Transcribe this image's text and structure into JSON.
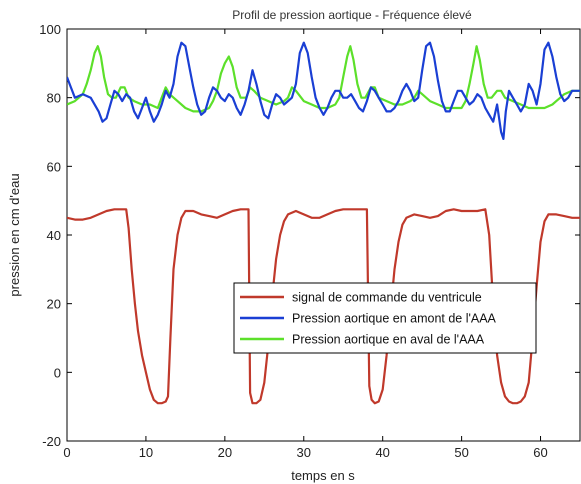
{
  "chart_data": {
    "type": "line",
    "title": "Profil de pression aortique - Fréquence élevé",
    "xlabel": "temps en s",
    "ylabel": "pression en cm d'eau",
    "xlim": [
      0,
      65
    ],
    "ylim": [
      -20,
      100
    ],
    "xticks": [
      0,
      10,
      20,
      30,
      40,
      50,
      60
    ],
    "yticks": [
      -20,
      0,
      20,
      40,
      60,
      80,
      100
    ],
    "xtick_labels": [
      "0",
      "10",
      "20",
      "30",
      "40",
      "50",
      "60"
    ],
    "ytick_labels": [
      "-20",
      "0",
      "20",
      "40",
      "60",
      "80",
      "100"
    ],
    "grid": false,
    "legend_position": "lower-right",
    "series": [
      {
        "name": "signal de commande du ventricule",
        "color": "#c0392b",
        "points": [
          [
            0,
            45
          ],
          [
            1,
            44.5
          ],
          [
            2,
            44.5
          ],
          [
            3,
            45
          ],
          [
            4,
            46
          ],
          [
            5,
            47
          ],
          [
            6,
            47.5
          ],
          [
            7,
            47.5
          ],
          [
            7.5,
            47.5
          ],
          [
            7.8,
            42
          ],
          [
            8.2,
            30
          ],
          [
            8.6,
            20
          ],
          [
            9,
            12
          ],
          [
            9.5,
            5
          ],
          [
            10,
            0
          ],
          [
            10.5,
            -5
          ],
          [
            11,
            -8
          ],
          [
            11.5,
            -9
          ],
          [
            12,
            -9
          ],
          [
            12.5,
            -8.5
          ],
          [
            12.8,
            -7
          ],
          [
            13.1,
            10
          ],
          [
            13.5,
            30
          ],
          [
            14,
            40
          ],
          [
            14.5,
            45
          ],
          [
            15,
            47
          ],
          [
            16,
            47
          ],
          [
            17,
            46
          ],
          [
            18,
            45.5
          ],
          [
            19,
            45
          ],
          [
            20,
            46
          ],
          [
            21,
            47
          ],
          [
            22,
            47.5
          ],
          [
            23,
            47.5
          ],
          [
            23.2,
            -6
          ],
          [
            23.5,
            -9
          ],
          [
            24,
            -9
          ],
          [
            24.5,
            -8
          ],
          [
            25,
            -3
          ],
          [
            25.5,
            8
          ],
          [
            26,
            22
          ],
          [
            26.5,
            33
          ],
          [
            27,
            40
          ],
          [
            27.5,
            44
          ],
          [
            28,
            46
          ],
          [
            29,
            47
          ],
          [
            30,
            46
          ],
          [
            31,
            45
          ],
          [
            32,
            45
          ],
          [
            33,
            46
          ],
          [
            34,
            47
          ],
          [
            35,
            47.5
          ],
          [
            36,
            47.5
          ],
          [
            37,
            47.5
          ],
          [
            38,
            47.5
          ],
          [
            38.3,
            -4
          ],
          [
            38.6,
            -8
          ],
          [
            39,
            -9
          ],
          [
            39.5,
            -8.5
          ],
          [
            40,
            -5
          ],
          [
            40.5,
            5
          ],
          [
            41,
            18
          ],
          [
            41.5,
            30
          ],
          [
            42,
            38
          ],
          [
            42.5,
            43
          ],
          [
            43,
            45
          ],
          [
            44,
            46
          ],
          [
            45,
            45.5
          ],
          [
            46,
            45
          ],
          [
            47,
            45.5
          ],
          [
            48,
            47
          ],
          [
            49,
            47.5
          ],
          [
            50,
            47
          ],
          [
            51,
            47
          ],
          [
            52,
            47
          ],
          [
            53,
            47.5
          ],
          [
            53.5,
            40
          ],
          [
            54,
            20
          ],
          [
            54.5,
            5
          ],
          [
            55,
            -3
          ],
          [
            55.5,
            -7
          ],
          [
            56,
            -8.5
          ],
          [
            56.5,
            -9
          ],
          [
            57,
            -9
          ],
          [
            57.5,
            -8.5
          ],
          [
            58,
            -7
          ],
          [
            58.5,
            -3
          ],
          [
            59,
            10
          ],
          [
            59.5,
            25
          ],
          [
            60,
            38
          ],
          [
            60.5,
            44
          ],
          [
            61,
            46
          ],
          [
            62,
            46
          ],
          [
            63,
            45.5
          ],
          [
            64,
            45
          ],
          [
            65,
            45
          ]
        ]
      },
      {
        "name": "Pression aortique en amont de l'AAA",
        "color": "#1a3fd4",
        "points": [
          [
            0,
            86
          ],
          [
            0.5,
            83
          ],
          [
            1,
            80
          ],
          [
            2,
            81
          ],
          [
            3,
            80
          ],
          [
            4,
            76
          ],
          [
            4.5,
            73
          ],
          [
            5,
            74
          ],
          [
            5.5,
            78
          ],
          [
            6,
            82
          ],
          [
            6.5,
            81
          ],
          [
            7,
            79
          ],
          [
            7.5,
            81
          ],
          [
            8,
            80
          ],
          [
            8.5,
            76
          ],
          [
            9,
            74
          ],
          [
            9.5,
            77
          ],
          [
            10,
            80
          ],
          [
            10.5,
            76
          ],
          [
            11,
            73
          ],
          [
            11.5,
            75
          ],
          [
            12,
            78
          ],
          [
            12.5,
            82
          ],
          [
            13,
            80
          ],
          [
            13.5,
            84
          ],
          [
            14,
            92
          ],
          [
            14.5,
            96
          ],
          [
            15,
            95
          ],
          [
            15.5,
            89
          ],
          [
            16,
            83
          ],
          [
            16.5,
            78
          ],
          [
            17,
            75
          ],
          [
            17.5,
            76
          ],
          [
            18,
            80
          ],
          [
            18.5,
            83
          ],
          [
            19,
            82
          ],
          [
            19.5,
            80
          ],
          [
            20,
            79
          ],
          [
            20.5,
            81
          ],
          [
            21,
            80
          ],
          [
            21.5,
            77
          ],
          [
            22,
            75
          ],
          [
            22.5,
            78
          ],
          [
            23,
            82
          ],
          [
            23.5,
            88
          ],
          [
            24,
            84
          ],
          [
            24.5,
            79
          ],
          [
            25,
            75
          ],
          [
            25.5,
            74
          ],
          [
            26,
            78
          ],
          [
            26.5,
            81
          ],
          [
            27,
            80
          ],
          [
            27.5,
            78
          ],
          [
            28,
            79
          ],
          [
            28.5,
            80
          ],
          [
            29,
            84
          ],
          [
            29.5,
            93
          ],
          [
            30,
            96
          ],
          [
            30.5,
            93
          ],
          [
            31,
            86
          ],
          [
            31.5,
            80
          ],
          [
            32,
            77
          ],
          [
            32.5,
            75
          ],
          [
            33,
            77
          ],
          [
            33.5,
            80
          ],
          [
            34,
            82
          ],
          [
            34.5,
            82
          ],
          [
            35,
            80
          ],
          [
            35.5,
            80
          ],
          [
            36,
            81
          ],
          [
            36.5,
            79
          ],
          [
            37,
            77
          ],
          [
            37.5,
            76
          ],
          [
            38,
            79
          ],
          [
            38.5,
            83
          ],
          [
            39,
            82
          ],
          [
            39.5,
            80
          ],
          [
            40,
            78
          ],
          [
            40.5,
            76
          ],
          [
            41,
            76
          ],
          [
            41.5,
            77
          ],
          [
            42,
            79
          ],
          [
            42.5,
            82
          ],
          [
            43,
            84
          ],
          [
            43.5,
            82
          ],
          [
            44,
            79
          ],
          [
            44.5,
            80
          ],
          [
            45,
            88
          ],
          [
            45.5,
            95
          ],
          [
            46,
            96
          ],
          [
            46.5,
            92
          ],
          [
            47,
            85
          ],
          [
            47.5,
            79
          ],
          [
            48,
            76
          ],
          [
            48.5,
            76
          ],
          [
            49,
            79
          ],
          [
            49.5,
            82
          ],
          [
            50,
            82
          ],
          [
            50.5,
            80
          ],
          [
            51,
            78
          ],
          [
            51.5,
            79
          ],
          [
            52,
            81
          ],
          [
            52.5,
            80
          ],
          [
            53,
            77
          ],
          [
            53.5,
            75
          ],
          [
            54,
            73
          ],
          [
            54.5,
            78
          ],
          [
            55,
            70
          ],
          [
            55.3,
            68
          ],
          [
            55.6,
            76
          ],
          [
            56,
            82
          ],
          [
            56.5,
            80
          ],
          [
            57,
            78
          ],
          [
            57.5,
            76
          ],
          [
            58,
            78
          ],
          [
            58.5,
            84
          ],
          [
            59,
            82
          ],
          [
            59.5,
            78
          ],
          [
            60,
            84
          ],
          [
            60.5,
            94
          ],
          [
            61,
            96
          ],
          [
            61.5,
            92
          ],
          [
            62,
            86
          ],
          [
            62.5,
            81
          ],
          [
            63,
            79
          ],
          [
            63.5,
            80
          ],
          [
            64,
            82
          ],
          [
            65,
            82
          ]
        ]
      },
      {
        "name": "Pression aortique en aval de l'AAA",
        "color": "#5ce02a",
        "points": [
          [
            0,
            78
          ],
          [
            1,
            79
          ],
          [
            2,
            81
          ],
          [
            2.5,
            84
          ],
          [
            3,
            88
          ],
          [
            3.5,
            93
          ],
          [
            3.9,
            95
          ],
          [
            4.3,
            92
          ],
          [
            4.7,
            86
          ],
          [
            5.2,
            81
          ],
          [
            5.7,
            80
          ],
          [
            6.2,
            80
          ],
          [
            6.8,
            83
          ],
          [
            7.3,
            83
          ],
          [
            7.8,
            80
          ],
          [
            8.5,
            79
          ],
          [
            9.5,
            78
          ],
          [
            10.5,
            78
          ],
          [
            11.5,
            77
          ],
          [
            12,
            80
          ],
          [
            12.5,
            83
          ],
          [
            13,
            81
          ],
          [
            14,
            79
          ],
          [
            15,
            77
          ],
          [
            16,
            76
          ],
          [
            17,
            76
          ],
          [
            18,
            77
          ],
          [
            18.5,
            79
          ],
          [
            19,
            82
          ],
          [
            19.5,
            87
          ],
          [
            20,
            90
          ],
          [
            20.5,
            92
          ],
          [
            21,
            89
          ],
          [
            21.5,
            83
          ],
          [
            22,
            80
          ],
          [
            22.7,
            80
          ],
          [
            23.2,
            83
          ],
          [
            23.7,
            82
          ],
          [
            24.5,
            80
          ],
          [
            25.5,
            79
          ],
          [
            26.5,
            78
          ],
          [
            27.5,
            79
          ],
          [
            28,
            80
          ],
          [
            28.5,
            83
          ],
          [
            29,
            82
          ],
          [
            30,
            79
          ],
          [
            31,
            78
          ],
          [
            32,
            77
          ],
          [
            33,
            77
          ],
          [
            34,
            78
          ],
          [
            34.5,
            80
          ],
          [
            35,
            86
          ],
          [
            35.5,
            92
          ],
          [
            35.9,
            95
          ],
          [
            36.3,
            91
          ],
          [
            36.8,
            84
          ],
          [
            37.3,
            80
          ],
          [
            37.8,
            80
          ],
          [
            38.5,
            83
          ],
          [
            39,
            83
          ],
          [
            39.5,
            80
          ],
          [
            40.5,
            79
          ],
          [
            41.5,
            78
          ],
          [
            42.5,
            78
          ],
          [
            43.5,
            79
          ],
          [
            44,
            80
          ],
          [
            44.5,
            82
          ],
          [
            45,
            81
          ],
          [
            46,
            79
          ],
          [
            47,
            78
          ],
          [
            48,
            77
          ],
          [
            49,
            77
          ],
          [
            50,
            77
          ],
          [
            50.5,
            79
          ],
          [
            51,
            84
          ],
          [
            51.5,
            90
          ],
          [
            51.9,
            95
          ],
          [
            52.3,
            91
          ],
          [
            52.8,
            84
          ],
          [
            53.3,
            80
          ],
          [
            53.8,
            80
          ],
          [
            54.5,
            82
          ],
          [
            55,
            82
          ],
          [
            55.5,
            80
          ],
          [
            56.5,
            79
          ],
          [
            57.5,
            78
          ],
          [
            58.5,
            77
          ],
          [
            59.5,
            77
          ],
          [
            60.5,
            77
          ],
          [
            61.5,
            78
          ],
          [
            62,
            79
          ],
          [
            62.5,
            80
          ],
          [
            63,
            81
          ],
          [
            64,
            82
          ],
          [
            65,
            82
          ]
        ]
      }
    ]
  }
}
